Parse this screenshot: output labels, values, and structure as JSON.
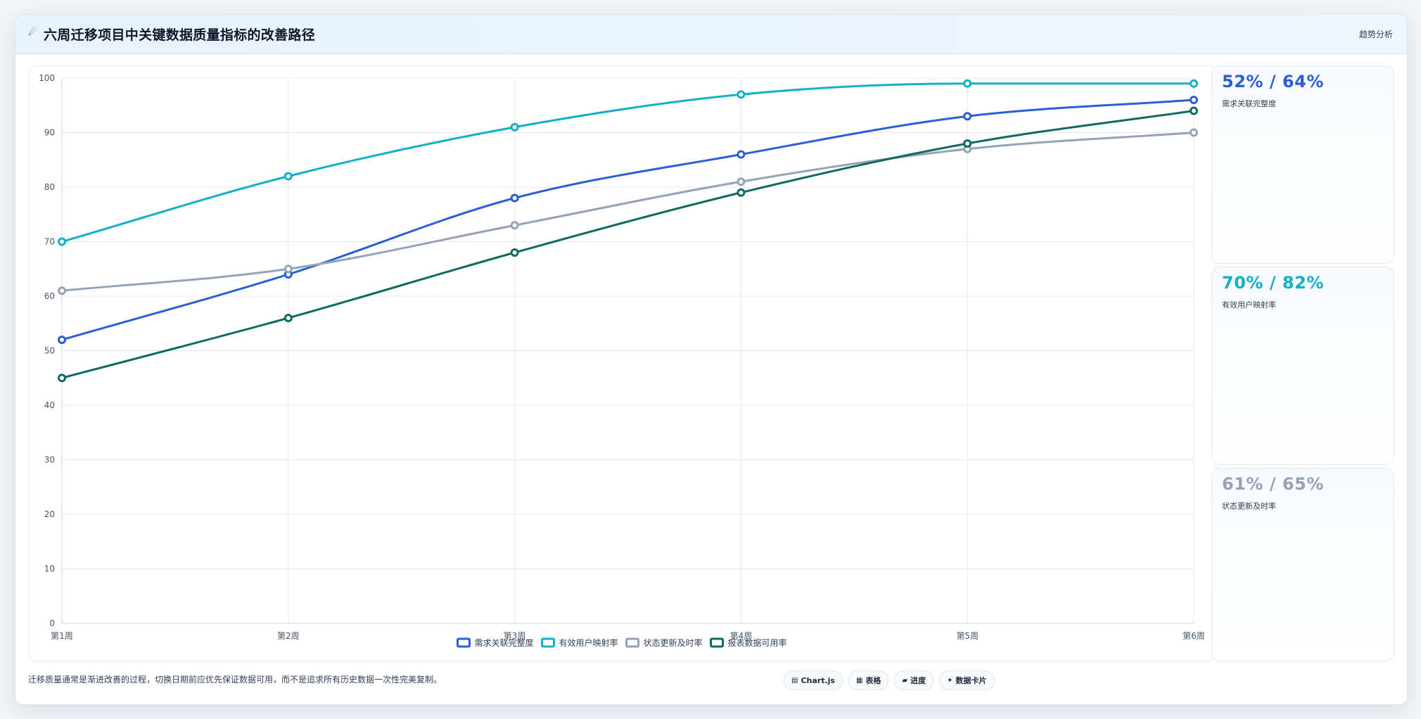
{
  "header": {
    "icon": "comet-icon",
    "title": "六周迁移项目中关键数据质量指标的改善路径",
    "tag": "趋势分析"
  },
  "chart_data": {
    "type": "line",
    "categories": [
      "第1周",
      "第2周",
      "第3周",
      "第4周",
      "第5周",
      "第6周"
    ],
    "ylim": [
      0,
      100
    ],
    "yticks": [
      0,
      10,
      20,
      30,
      40,
      50,
      60,
      70,
      80,
      90,
      100
    ],
    "grid": true,
    "legend_position": "bottom",
    "series": [
      {
        "name": "需求关联完整度",
        "color": "#2b5fd9",
        "values": [
          52,
          64,
          78,
          86,
          93,
          96
        ]
      },
      {
        "name": "有效用户映射率",
        "color": "#13b0c6",
        "values": [
          70,
          82,
          91,
          97,
          99,
          99
        ]
      },
      {
        "name": "状态更新及时率",
        "color": "#94a3b8",
        "values": [
          61,
          65,
          73,
          81,
          87,
          90
        ]
      },
      {
        "name": "报表数据可用率",
        "color": "#0f6b5f",
        "values": [
          45,
          56,
          68,
          79,
          88,
          94
        ]
      }
    ]
  },
  "side_cards": [
    {
      "value": "52% / 64%",
      "label": "需求关联完整度",
      "color": "#2b5fd9"
    },
    {
      "value": "70% / 82%",
      "label": "有效用户映射率",
      "color": "#13b0c6"
    },
    {
      "value": "61% / 65%",
      "label": "状态更新及时率",
      "color": "#94a3b8"
    }
  ],
  "footer": {
    "note": "迁移质量通常是渐进改善的过程，切换日期前应优先保证数据可用，而不是追求所有历史数据一次性完美复制。",
    "pills": [
      {
        "icon": "chart-icon",
        "glyph": "▤",
        "label": "Chart.js"
      },
      {
        "icon": "table-icon",
        "glyph": "▦",
        "label": "表格"
      },
      {
        "icon": "progress-icon",
        "glyph": "▰",
        "label": "进度"
      },
      {
        "icon": "sparkle-icon",
        "glyph": "✦",
        "label": "数据卡片"
      }
    ]
  }
}
